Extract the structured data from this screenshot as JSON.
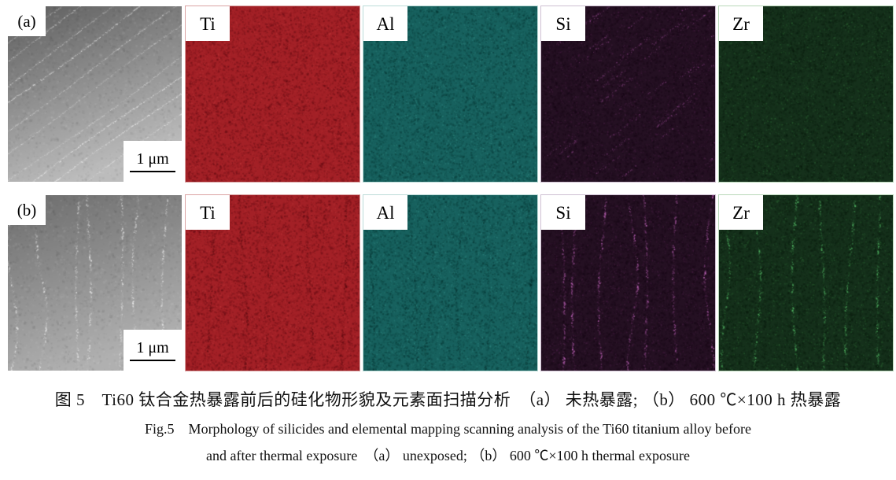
{
  "caption": {
    "line_cn": "图 5　Ti60 钛合金热暴露前后的硅化物形貌及元素面扫描分析　（a） 未热暴露; （b） 600 ℃×100 h 热暴露",
    "line_en_1": "Fig.5　Morphology of silicides and elemental mapping scanning analysis of the Ti60 titanium alloy before",
    "line_en_2": "and after thermal exposure　（a） unexposed; （b） 600 ℃×100 h thermal exposure"
  },
  "colors": {
    "background": "#ffffff",
    "text": "#111111"
  },
  "rows": [
    {
      "id": "a",
      "panels": [
        {
          "type": "micrograph",
          "label": "(a)",
          "scale_label": "1 μm",
          "grad_top": "#5e5e5e",
          "grad_bottom": "#bcbcbc",
          "streaks": {
            "dir": "diag",
            "color": "#f4f4f4",
            "count": 12,
            "mode": "bright",
            "beaded": false,
            "len": "full"
          }
        },
        {
          "type": "map",
          "label": "Ti",
          "base": "#a32026",
          "noise_dark": "#55070f",
          "noise_bright": "#d24a4a",
          "border": "#dba4a4",
          "streaks": null
        },
        {
          "type": "map",
          "label": "Al",
          "base": "#17615e",
          "noise_dark": "#032e2c",
          "noise_bright": "#46aaa0",
          "border": "#bcdcd9",
          "streaks": null
        },
        {
          "type": "map",
          "label": "Si",
          "base": "#241022",
          "noise_dark": "#120511",
          "noise_bright": "#70306a",
          "border": "#cfc0d2",
          "streaks": {
            "dir": "diag",
            "color": "#b75cb2",
            "count": 42,
            "mode": "bright",
            "beaded": true,
            "len": "short"
          }
        },
        {
          "type": "map",
          "label": "Zr",
          "base": "#15301b",
          "noise_dark": "#07150a",
          "noise_bright": "#3f9349",
          "border": "#b9d8ba",
          "streaks": null
        }
      ]
    },
    {
      "id": "b",
      "panels": [
        {
          "type": "micrograph",
          "label": "(b)",
          "scale_label": "1 μm",
          "grad_top": "#6c6c6c",
          "grad_bottom": "#b0b0b0",
          "streaks": {
            "dir": "vert",
            "color": "#fafafa",
            "count": 7,
            "mode": "bright",
            "beaded": true,
            "len": "full"
          }
        },
        {
          "type": "map",
          "label": "Ti",
          "base": "#a32026",
          "noise_dark": "#55070f",
          "noise_bright": "#d24a4a",
          "border": "#dba4a4",
          "streaks": {
            "dir": "vert",
            "color": "#3a0008",
            "count": 5,
            "mode": "dark",
            "beaded": true,
            "len": "full"
          }
        },
        {
          "type": "map",
          "label": "Al",
          "base": "#17615e",
          "noise_dark": "#032e2c",
          "noise_bright": "#46aaa0",
          "border": "#bcdcd9",
          "streaks": {
            "dir": "vert",
            "color": "#02211f",
            "count": 6,
            "mode": "dark",
            "beaded": true,
            "len": "full"
          }
        },
        {
          "type": "map",
          "label": "Si",
          "base": "#241022",
          "noise_dark": "#120511",
          "noise_bright": "#70306a",
          "border": "#cfc0d2",
          "streaks": {
            "dir": "vert",
            "color": "#cf6cc9",
            "count": 7,
            "mode": "bright",
            "beaded": true,
            "len": "full"
          }
        },
        {
          "type": "map",
          "label": "Zr",
          "base": "#15301b",
          "noise_dark": "#07150a",
          "noise_bright": "#3f9349",
          "border": "#b9d8ba",
          "streaks": {
            "dir": "vert",
            "color": "#5fd473",
            "count": 6,
            "mode": "bright",
            "beaded": true,
            "len": "full"
          }
        }
      ]
    }
  ]
}
